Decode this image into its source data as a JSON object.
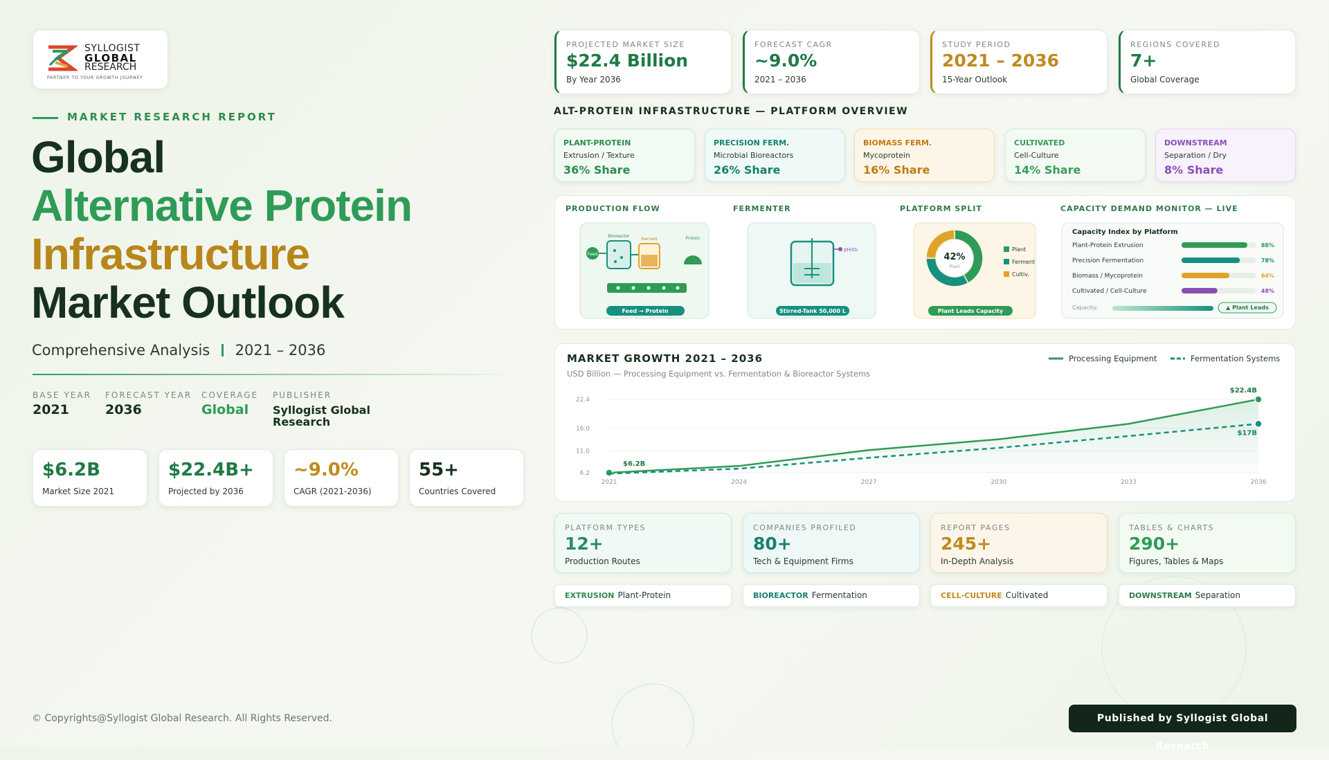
{
  "logo": {
    "name_lines": [
      "SYLLOGIST",
      "GLOBAL",
      "RESEARCH"
    ],
    "tagline": "PARTNER TO YOUR GROWTH JOURNEY"
  },
  "hero": {
    "eyebrow": "MARKET RESEARCH REPORT",
    "title_lines": [
      "Global",
      "Alternative Protein",
      "Infrastructure",
      "Market Outlook"
    ],
    "subtitle": "Comprehensive Analysis",
    "period": "2021 – 2036"
  },
  "meta": [
    {
      "label": "BASE YEAR",
      "value": "2021"
    },
    {
      "label": "FORECAST YEAR",
      "value": "2036"
    },
    {
      "label": "COVERAGE",
      "value": "Global"
    },
    {
      "label": "PUBLISHER",
      "value": "Syllogist Global Research"
    }
  ],
  "stats": [
    {
      "value": "$6.2B",
      "label": "Market Size 2021"
    },
    {
      "value": "$22.4B+",
      "label": "Projected by 2036"
    },
    {
      "value": "~9.0%",
      "label": "CAGR (2021-2036)"
    },
    {
      "value": "55+",
      "label": "Countries Covered"
    }
  ],
  "kpis": [
    {
      "label": "PROJECTED MARKET SIZE",
      "value": "$22.4 Billion",
      "note": "By Year 2036"
    },
    {
      "label": "FORECAST CAGR",
      "value": "~9.0%",
      "note": "2021 – 2036"
    },
    {
      "label": "STUDY PERIOD",
      "value": "2021 – 2036",
      "note": "15-Year Outlook"
    },
    {
      "label": "REGIONS COVERED",
      "value": "7+",
      "note": "Global Coverage"
    }
  ],
  "overview": {
    "title": "ALT-PROTEIN INFRASTRUCTURE — PLATFORM OVERVIEW",
    "platforms": [
      {
        "name": "PLANT-PROTEIN",
        "desc": "Extrusion / Texture",
        "share": "36% Share"
      },
      {
        "name": "PRECISION FERM.",
        "desc": "Microbial Bioreactors",
        "share": "26% Share"
      },
      {
        "name": "BIOMASS FERM.",
        "desc": "Mycoprotein",
        "share": "16% Share"
      },
      {
        "name": "CULTIVATED",
        "desc": "Cell-Culture",
        "share": "14% Share"
      },
      {
        "name": "DOWNSTREAM",
        "desc": "Separation / Dry",
        "share": "8% Share"
      }
    ]
  },
  "panel": {
    "flow": {
      "title": "PRODUCTION FLOW",
      "feed": "Feed",
      "bioreactor": "Bioreactor",
      "harvest": "Harvest",
      "protein": "Protein",
      "caption": "Feed → Protein"
    },
    "fermenter": {
      "title": "FERMENTER",
      "sensor": "pH/O₂",
      "caption": "Stirred-Tank 50,000 L"
    },
    "split": {
      "title": "PLATFORM SPLIT",
      "type": "pie",
      "categories": [
        "Plant",
        "Ferment",
        "Cultiv."
      ],
      "values": [
        42,
        33,
        25
      ],
      "value_labels": [
        "42%",
        null,
        null
      ],
      "colors": [
        "#2e9b57",
        "#17907f",
        "#e0a32a"
      ],
      "caption": "Plant Leads Capacity"
    },
    "capacity": {
      "title": "CAPACITY DEMAND MONITOR — LIVE",
      "type": "bar",
      "chart_title": "Capacity Index by Platform",
      "categories": [
        "Plant-Protein Extrusion",
        "Precision Fermentation",
        "Biomass / Mycoprotein",
        "Cultivated / Cell-Culture"
      ],
      "values": [
        88,
        78,
        64,
        48
      ],
      "value_labels": [
        "88%",
        "78%",
        "64%",
        "48%"
      ],
      "colors": [
        "#2e9b57",
        "#17907f",
        "#e0a32a",
        "#8a4fb5"
      ],
      "xlim": [
        0,
        100
      ],
      "footer_label": "Capacity:",
      "badge": "▲ Plant Leads"
    }
  },
  "growth": {
    "type": "line",
    "title": "MARKET GROWTH 2021 – 2036",
    "subtitle": "USD Billion — Processing Equipment vs. Fermentation & Bioreactor Systems",
    "x": [
      2021,
      2024,
      2027,
      2030,
      2033,
      2036
    ],
    "xlim": [
      2021,
      2036
    ],
    "xticks": [
      2021,
      2024,
      2027,
      2030,
      2033,
      2036
    ],
    "ylim": [
      6.2,
      22.4
    ],
    "yticks": [
      6.2,
      {
        "value": 11,
        "label": "11.0"
      },
      {
        "value": 16,
        "label": "16.0"
      },
      22.4
    ],
    "series": [
      {
        "name": "Processing Equipment",
        "color": "#2e9b57",
        "values": [
          6.2,
          7.7,
          11.2,
          13.6,
          17.0,
          22.4
        ],
        "value_labels": [
          "$6.2B",
          null,
          null,
          null,
          null,
          "$22.4B"
        ]
      },
      {
        "name": "Fermentation Systems",
        "color": "#17907f",
        "dashed": true,
        "values": [
          6.0,
          7.1,
          9.5,
          11.7,
          14.3,
          17.0
        ],
        "value_labels": [
          null,
          null,
          null,
          null,
          null,
          "$17B"
        ]
      }
    ]
  },
  "counts": [
    {
      "label": "PLATFORM TYPES",
      "value": "12+",
      "note": "Production Routes"
    },
    {
      "label": "COMPANIES PROFILED",
      "value": "80+",
      "note": "Tech & Equipment Firms"
    },
    {
      "label": "REPORT PAGES",
      "value": "245+",
      "note": "In-Depth Analysis"
    },
    {
      "label": "TABLES & CHARTS",
      "value": "290+",
      "note": "Figures, Tables & Maps"
    }
  ],
  "tags": [
    {
      "key": "EXTRUSION",
      "text": "Plant-Protein"
    },
    {
      "key": "BIOREACTOR",
      "text": "Fermentation"
    },
    {
      "key": "CELL-CULTURE",
      "text": "Cultivated"
    },
    {
      "key": "DOWNSTREAM",
      "text": "Separation"
    }
  ],
  "footer": {
    "copyright": "© Copyrights@Syllogist Global Research. All Rights Reserved.",
    "publisher": "Published by Syllogist Global Research"
  }
}
